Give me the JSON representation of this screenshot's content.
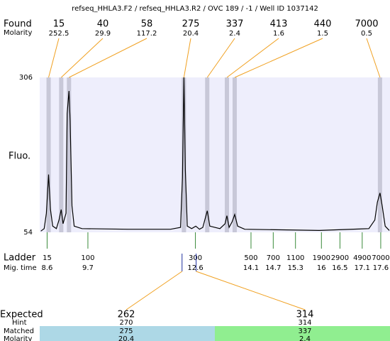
{
  "chart_data": {
    "type": "line",
    "title": "refseq_HHLA3.F2 / refseq_HHLA3.R2 / OVC 189 / -1 / Well ID 1037142",
    "ylabel": "Fluo.",
    "ylim": [
      54,
      306
    ],
    "yticks": [
      54,
      306
    ],
    "xlim": [
      8.4,
      17.85
    ],
    "trace": {
      "color": "#000000",
      "x": [
        8.43,
        8.52,
        8.58,
        8.64,
        8.69,
        8.75,
        8.85,
        8.92,
        8.98,
        9.03,
        9.11,
        9.14,
        9.19,
        9.22,
        9.27,
        9.33,
        9.54,
        10.78,
        11.93,
        12.2,
        12.25,
        12.29,
        12.33,
        12.38,
        12.5,
        12.61,
        12.71,
        12.8,
        12.92,
        12.99,
        13.26,
        13.4,
        13.45,
        13.51,
        13.59,
        13.66,
        13.74,
        13.93,
        15.94,
        17.28,
        17.44,
        17.51,
        17.58,
        17.64,
        17.72,
        17.83
      ],
      "y": [
        56,
        60,
        85,
        148,
        91,
        64,
        60,
        74,
        91,
        68,
        85,
        247,
        284,
        236,
        97,
        64,
        60,
        59,
        59,
        62,
        143,
        306,
        155,
        64,
        60,
        64,
        59,
        62,
        89,
        64,
        60,
        68,
        81,
        62,
        71,
        83,
        64,
        59,
        57,
        60,
        74,
        103,
        118,
        97,
        64,
        57
      ]
    },
    "found": {
      "label": "Found",
      "molarity_label": "Molarity",
      "color": "#f0a020",
      "band_color": "#c8c8d8",
      "peaks": [
        {
          "size": 15,
          "molarity": 252.5,
          "mig": 8.64
        },
        {
          "size": 40,
          "molarity": 29.9,
          "mig": 8.98
        },
        {
          "size": 58,
          "molarity": 117.2,
          "mig": 9.19
        },
        {
          "size": 275,
          "molarity": 20.4,
          "mig": 12.29
        },
        {
          "size": 337,
          "molarity": 2.4,
          "mig": 12.92
        },
        {
          "size": 413,
          "molarity": 1.6,
          "mig": 13.45
        },
        {
          "size": 440,
          "molarity": 1.5,
          "mig": 13.66
        },
        {
          "size": 7000,
          "molarity": 0.5,
          "mig": 17.58
        }
      ]
    },
    "ladder": {
      "label": "Ladder",
      "mig_label": "Mig. time",
      "color": "#3a8a3a",
      "sizes": [
        15,
        100,
        300,
        500,
        700,
        1100,
        1900,
        2900,
        4900,
        7000
      ],
      "mig": [
        8.6,
        9.7,
        12.6,
        14.1,
        14.7,
        15.3,
        16,
        16.5,
        17.1,
        17.6
      ]
    },
    "expected": {
      "label": "Expected",
      "hint_label": "Hint",
      "matched_label": "Matched",
      "molarity_label": "Molarity",
      "items": [
        {
          "size": 262,
          "hint": 270,
          "matched": 275,
          "molarity": 20.4,
          "mig": 12.24,
          "color": "#add8e6"
        },
        {
          "size": 314,
          "hint": 314,
          "matched": 337,
          "molarity": 2.4,
          "mig": 12.62,
          "color": "#90ee90"
        }
      ]
    }
  }
}
